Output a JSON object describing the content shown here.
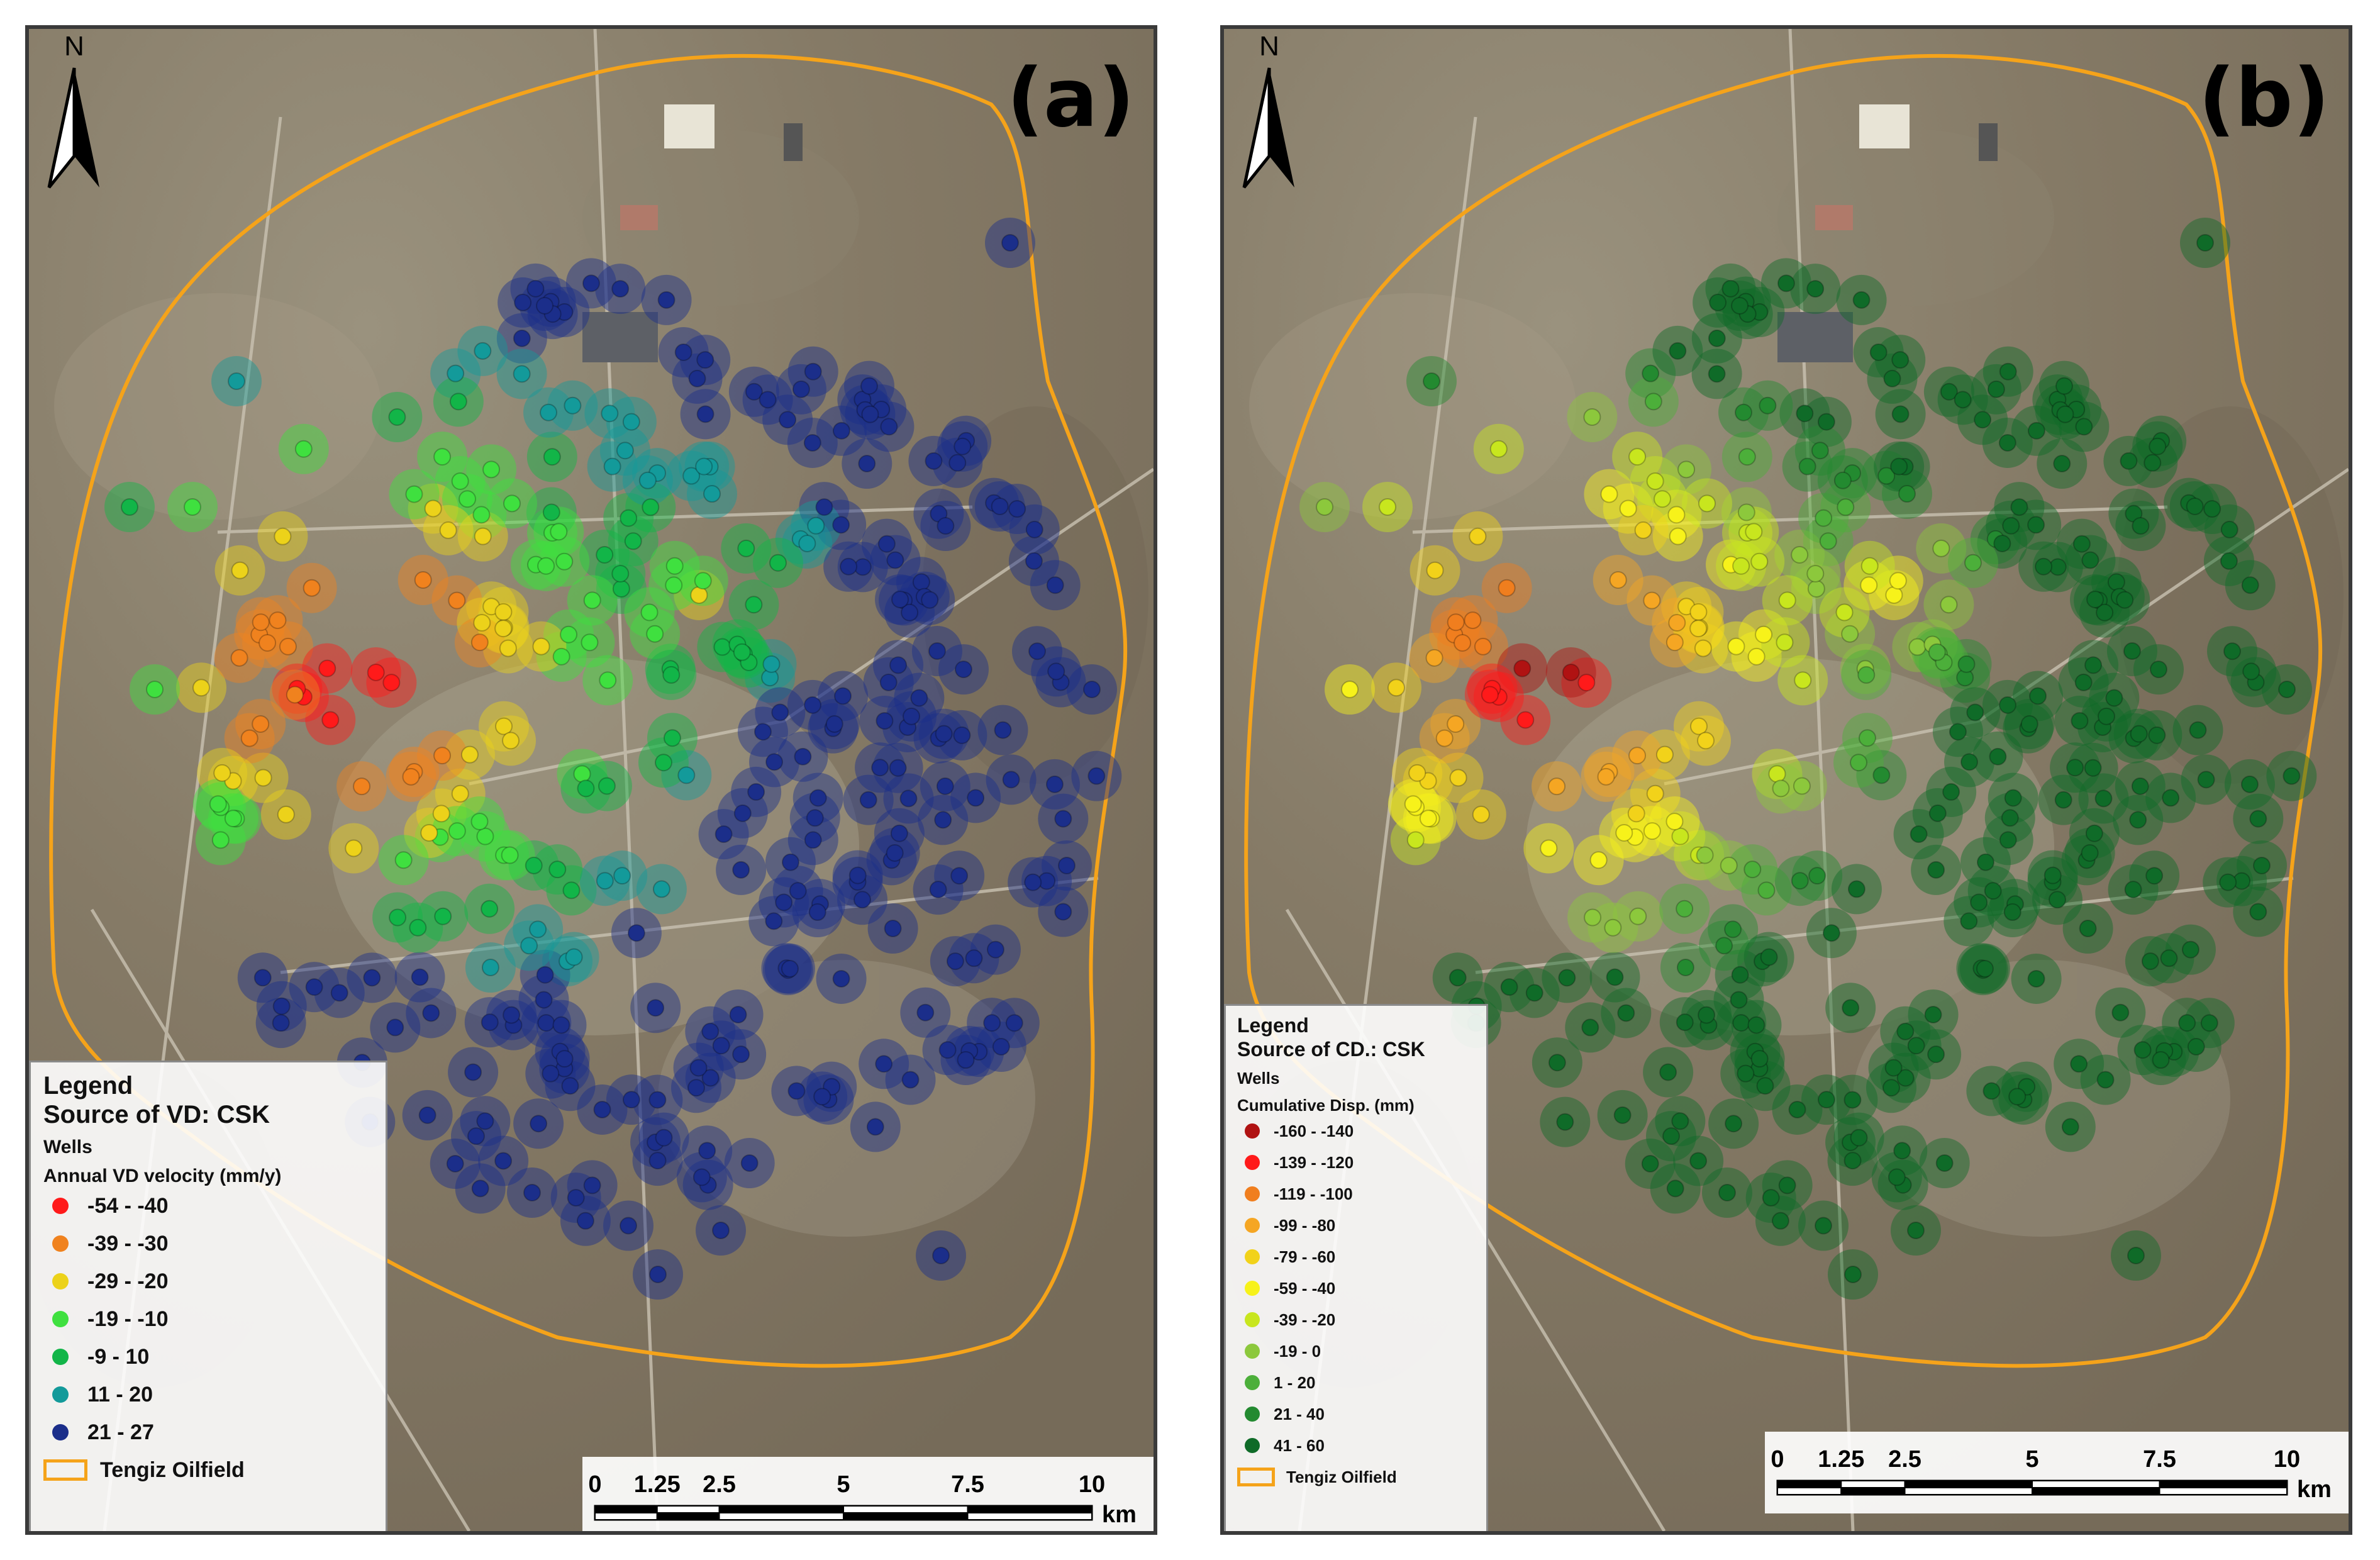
{
  "panels": [
    {
      "label": "(a)",
      "north_label": "N",
      "legend": {
        "title": "Legend",
        "source": "Source of VD: CSK",
        "group": "Wells",
        "variable": "Annual VD velocity (mm/y)",
        "classes": [
          {
            "label": "-54 - -40",
            "color": "#ff1a1a"
          },
          {
            "label": "-39 - -30",
            "color": "#f0821e"
          },
          {
            "label": "-29 - -20",
            "color": "#ecd21a"
          },
          {
            "label": "-19 - -10",
            "color": "#3fe03f"
          },
          {
            "label": "-9 - 10",
            "color": "#12b548"
          },
          {
            "label": "11 - 20",
            "color": "#139a9a"
          },
          {
            "label": "21 - 27",
            "color": "#1b2e8a"
          }
        ],
        "field_label": "Tengiz Oilfield"
      },
      "scale": {
        "ticks": [
          "0",
          "1.25",
          "2.5",
          "5",
          "7.5",
          "10"
        ],
        "unit": "km"
      }
    },
    {
      "label": "(b)",
      "north_label": "N",
      "legend": {
        "title": "Legend",
        "source": "Source of CD.: CSK",
        "group": "Wells",
        "variable": "Cumulative Disp. (mm)",
        "classes": [
          {
            "label": "-160 - -140",
            "color": "#b01212"
          },
          {
            "label": "-139 - -120",
            "color": "#ff1a1a"
          },
          {
            "label": "-119 - -100",
            "color": "#f07e1e"
          },
          {
            "label": "-99 - -80",
            "color": "#f5a623"
          },
          {
            "label": "-79 - -60",
            "color": "#f2d21a"
          },
          {
            "label": "-59 - -40",
            "color": "#f7f21a"
          },
          {
            "label": "-39 - -20",
            "color": "#c8e61e"
          },
          {
            "label": "-19 - 0",
            "color": "#8cc83c"
          },
          {
            "label": "1 - 20",
            "color": "#4caf3a"
          },
          {
            "label": "21 - 40",
            "color": "#238a30"
          },
          {
            "label": "41 - 60",
            "color": "#0f6b28"
          }
        ],
        "field_label": "Tengiz Oilfield"
      },
      "scale": {
        "ticks": [
          "0",
          "1.25",
          "2.5",
          "5",
          "7.5",
          "10"
        ],
        "unit": "km"
      }
    }
  ],
  "colors": {
    "field_outline": "#f5a31a",
    "imagery_base": "#8a7f6b",
    "road": "#c9c2b2"
  }
}
